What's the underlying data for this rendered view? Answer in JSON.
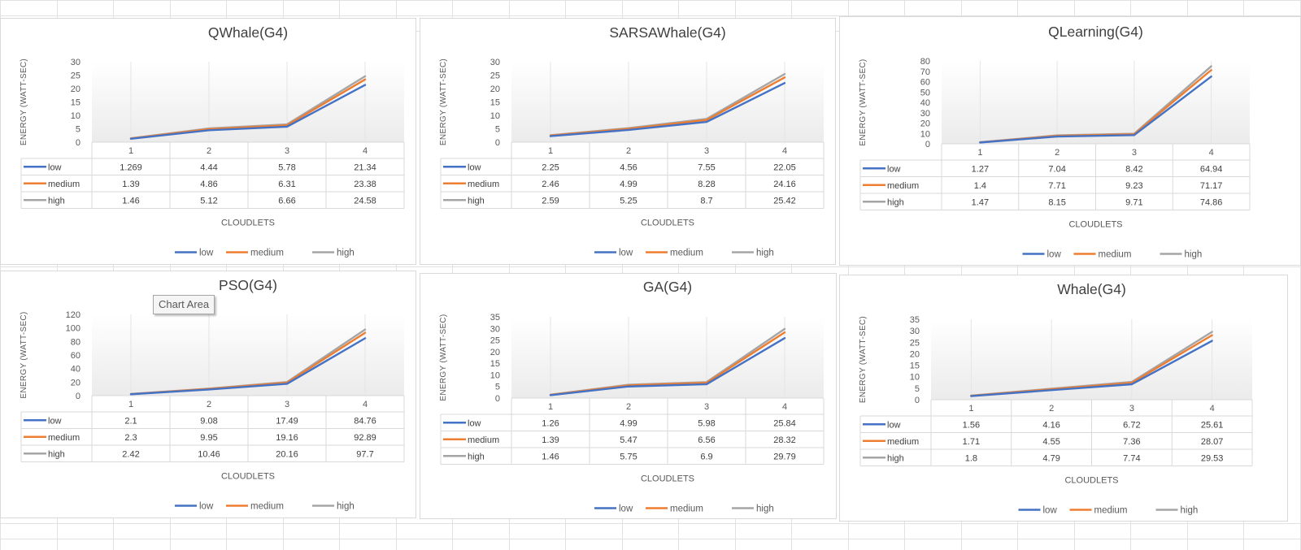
{
  "tooltip": "Chart Area",
  "colors": {
    "low": "#4472C4",
    "medium": "#ED7D31",
    "high": "#A5A5A5"
  },
  "chart_data": [
    {
      "type": "line",
      "title": "QWhale(G4)",
      "xlabel": "CLOUDLETS",
      "ylabel": "ENERGY (WATT-SEC)",
      "categories": [
        "1",
        "2",
        "3",
        "4"
      ],
      "ylim": [
        0,
        30
      ],
      "yticks": [
        0,
        5,
        10,
        15,
        20,
        25,
        30
      ],
      "legend": "bottom",
      "data_table": true,
      "series": [
        {
          "name": "low",
          "values": [
            "1.269",
            "4.44",
            "5.78",
            "21.34"
          ]
        },
        {
          "name": "medium",
          "values": [
            "1.39",
            "4.86",
            "6.31",
            "23.38"
          ]
        },
        {
          "name": "high",
          "values": [
            "1.46",
            "5.12",
            "6.66",
            "24.58"
          ]
        }
      ]
    },
    {
      "type": "line",
      "title": "SARSAWhale(G4)",
      "xlabel": "CLOUDLETS",
      "ylabel": "ENERGY (WATT-SEC)",
      "categories": [
        "1",
        "2",
        "3",
        "4"
      ],
      "ylim": [
        0,
        30
      ],
      "yticks": [
        0,
        5,
        10,
        15,
        20,
        25,
        30
      ],
      "legend": "bottom",
      "data_table": true,
      "series": [
        {
          "name": "low",
          "values": [
            "2.25",
            "4.56",
            "7.55",
            "22.05"
          ]
        },
        {
          "name": "medium",
          "values": [
            "2.46",
            "4.99",
            "8.28",
            "24.16"
          ]
        },
        {
          "name": "high",
          "values": [
            "2.59",
            "5.25",
            "8.7",
            "25.42"
          ]
        }
      ]
    },
    {
      "type": "line",
      "title": "QLearning(G4)",
      "xlabel": "CLOUDLETS",
      "ylabel": "ENERGY (WATT-SEC)",
      "categories": [
        "1",
        "2",
        "3",
        "4"
      ],
      "ylim": [
        0,
        80
      ],
      "yticks": [
        0,
        10,
        20,
        30,
        40,
        50,
        60,
        70,
        80
      ],
      "legend": "bottom",
      "data_table": true,
      "series": [
        {
          "name": "low",
          "values": [
            "1.27",
            "7.04",
            "8.42",
            "64.94"
          ]
        },
        {
          "name": "medium",
          "values": [
            "1.4",
            "7.71",
            "9.23",
            "71.17"
          ]
        },
        {
          "name": "high",
          "values": [
            "1.47",
            "8.15",
            "9.71",
            "74.86"
          ]
        }
      ]
    },
    {
      "type": "line",
      "title": "PSO(G4)",
      "xlabel": "CLOUDLETS",
      "ylabel": "ENERGY (WATT-SEC)",
      "categories": [
        "1",
        "2",
        "3",
        "4"
      ],
      "ylim": [
        0,
        120
      ],
      "yticks": [
        0,
        20,
        40,
        60,
        80,
        100,
        120
      ],
      "legend": "bottom",
      "data_table": true,
      "series": [
        {
          "name": "low",
          "values": [
            "2.1",
            "9.08",
            "17.49",
            "84.76"
          ]
        },
        {
          "name": "medium",
          "values": [
            "2.3",
            "9.95",
            "19.16",
            "92.89"
          ]
        },
        {
          "name": "high",
          "values": [
            "2.42",
            "10.46",
            "20.16",
            "97.7"
          ]
        }
      ]
    },
    {
      "type": "line",
      "title": "GA(G4)",
      "xlabel": "CLOUDLETS",
      "ylabel": "ENERGY (WATT-SEC)",
      "categories": [
        "1",
        "2",
        "3",
        "4"
      ],
      "ylim": [
        0,
        35
      ],
      "yticks": [
        0,
        5,
        10,
        15,
        20,
        25,
        30,
        35
      ],
      "legend": "bottom",
      "data_table": true,
      "series": [
        {
          "name": "low",
          "values": [
            "1.26",
            "4.99",
            "5.98",
            "25.84"
          ]
        },
        {
          "name": "medium",
          "values": [
            "1.39",
            "5.47",
            "6.56",
            "28.32"
          ]
        },
        {
          "name": "high",
          "values": [
            "1.46",
            "5.75",
            "6.9",
            "29.79"
          ]
        }
      ]
    },
    {
      "type": "line",
      "title": "Whale(G4)",
      "xlabel": "CLOUDLETS",
      "ylabel": "ENERGY (WATT-SEC)",
      "categories": [
        "1",
        "2",
        "3",
        "4"
      ],
      "ylim": [
        0,
        35
      ],
      "yticks": [
        0,
        5,
        10,
        15,
        20,
        25,
        30,
        35
      ],
      "legend": "bottom",
      "data_table": true,
      "series": [
        {
          "name": "low",
          "values": [
            "1.56",
            "4.16",
            "6.72",
            "25.61"
          ]
        },
        {
          "name": "medium",
          "values": [
            "1.71",
            "4.55",
            "7.36",
            "28.07"
          ]
        },
        {
          "name": "high",
          "values": [
            "1.8",
            "4.79",
            "7.74",
            "29.53"
          ]
        }
      ]
    }
  ]
}
